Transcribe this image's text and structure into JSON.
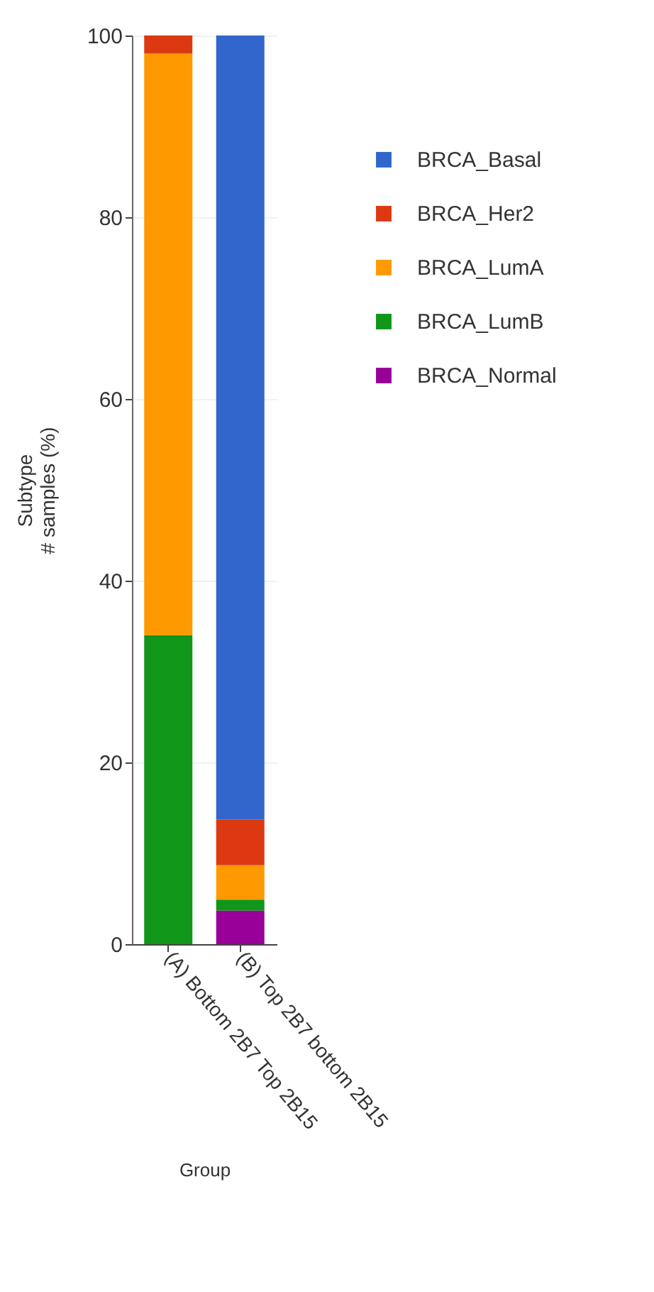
{
  "chart_data": {
    "type": "bar",
    "stacked": true,
    "xlabel": "Group",
    "ylabel": "Subtype\n# samples (%)",
    "categories": [
      "(A) Bottom 2B7 Top 2B15",
      "(B) Top 2B7 bottom 2B15"
    ],
    "series": [
      {
        "name": "BRCA_Normal",
        "color": "#990099",
        "values": [
          0,
          3.7
        ]
      },
      {
        "name": "BRCA_LumB",
        "color": "#109618",
        "values": [
          34,
          1.2
        ]
      },
      {
        "name": "BRCA_LumA",
        "color": "#ff9900",
        "values": [
          64,
          3.8
        ]
      },
      {
        "name": "BRCA_Her2",
        "color": "#dc3912",
        "values": [
          2,
          5.0
        ]
      },
      {
        "name": "BRCA_Basal",
        "color": "#3366cc",
        "values": [
          0,
          86.3
        ]
      }
    ],
    "ylim": [
      0,
      100
    ],
    "yticks": [
      0,
      20,
      40,
      60,
      80,
      100
    ],
    "grid": "y",
    "legend": "top right"
  }
}
